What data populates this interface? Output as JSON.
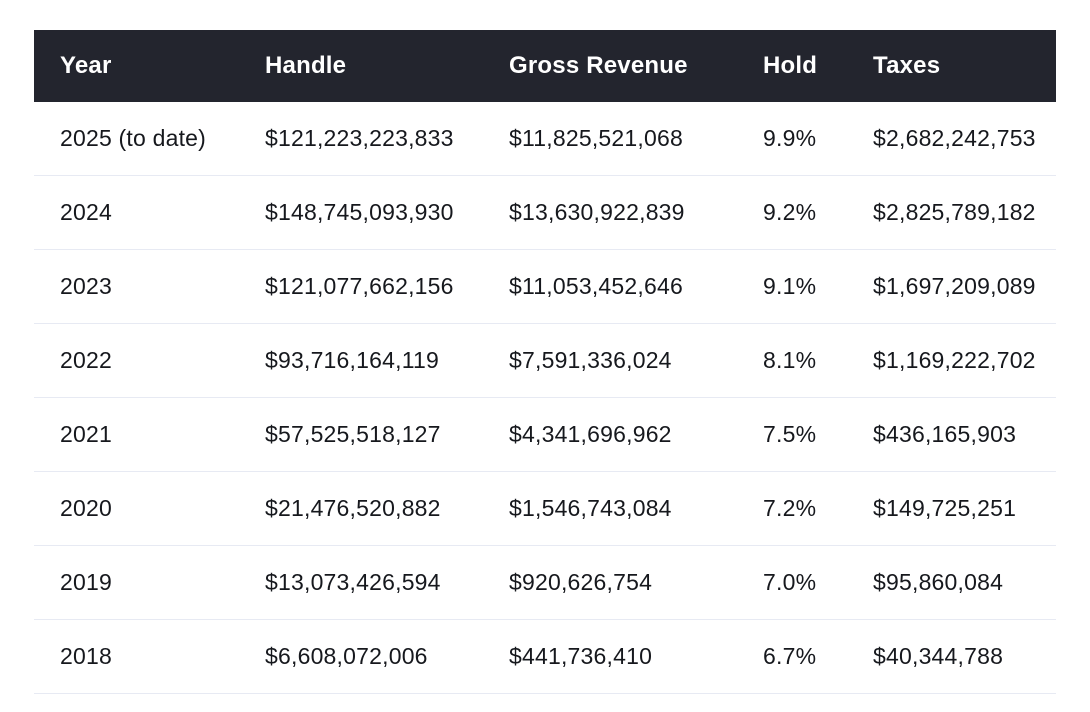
{
  "colors": {
    "header_bg": "#23252e",
    "header_text": "#ffffff",
    "body_text": "#16181d",
    "row_border": "#e7eaf3"
  },
  "table": {
    "columns": [
      "Year",
      "Handle",
      "Gross Revenue",
      "Hold",
      "Taxes"
    ],
    "rows": [
      {
        "year": "2025 (to date)",
        "handle": "$121,223,223,833",
        "gross_revenue": "$11,825,521,068",
        "hold": "9.9%",
        "taxes": "$2,682,242,753"
      },
      {
        "year": "2024",
        "handle": "$148,745,093,930",
        "gross_revenue": "$13,630,922,839",
        "hold": "9.2%",
        "taxes": "$2,825,789,182"
      },
      {
        "year": "2023",
        "handle": "$121,077,662,156",
        "gross_revenue": "$11,053,452,646",
        "hold": "9.1%",
        "taxes": "$1,697,209,089"
      },
      {
        "year": "2022",
        "handle": "$93,716,164,119",
        "gross_revenue": "$7,591,336,024",
        "hold": "8.1%",
        "taxes": "$1,169,222,702"
      },
      {
        "year": "2021",
        "handle": "$57,525,518,127",
        "gross_revenue": "$4,341,696,962",
        "hold": "7.5%",
        "taxes": "$436,165,903"
      },
      {
        "year": "2020",
        "handle": "$21,476,520,882",
        "gross_revenue": "$1,546,743,084",
        "hold": "7.2%",
        "taxes": "$149,725,251"
      },
      {
        "year": "2019",
        "handle": "$13,073,426,594",
        "gross_revenue": "$920,626,754",
        "hold": "7.0%",
        "taxes": "$95,860,084"
      },
      {
        "year": "2018",
        "handle": "$6,608,072,006",
        "gross_revenue": "$441,736,410",
        "hold": "6.7%",
        "taxes": "$40,344,788"
      }
    ]
  },
  "chart_data": {
    "type": "table",
    "title": "",
    "columns": [
      "Year",
      "Handle",
      "Gross Revenue",
      "Hold",
      "Taxes"
    ],
    "rows": [
      [
        "2025 (to date)",
        "$121,223,223,833",
        "$11,825,521,068",
        "9.9%",
        "$2,682,242,753"
      ],
      [
        "2024",
        "$148,745,093,930",
        "$13,630,922,839",
        "9.2%",
        "$2,825,789,182"
      ],
      [
        "2023",
        "$121,077,662,156",
        "$11,053,452,646",
        "9.1%",
        "$1,697,209,089"
      ],
      [
        "2022",
        "$93,716,164,119",
        "$7,591,336,024",
        "8.1%",
        "$1,169,222,702"
      ],
      [
        "2021",
        "$57,525,518,127",
        "$4,341,696,962",
        "7.5%",
        "$436,165,903"
      ],
      [
        "2020",
        "$21,476,520,882",
        "$1,546,743,084",
        "7.2%",
        "$149,725,251"
      ],
      [
        "2019",
        "$13,073,426,594",
        "$920,626,754",
        "7.0%",
        "$95,860,084"
      ],
      [
        "2018",
        "$6,608,072,006",
        "$441,736,410",
        "6.7%",
        "$40,344,788"
      ]
    ],
    "series_numeric": {
      "years": [
        2025,
        2024,
        2023,
        2022,
        2021,
        2020,
        2019,
        2018
      ],
      "handle": [
        121223223833,
        148745093930,
        121077662156,
        93716164119,
        57525518127,
        21476520882,
        13073426594,
        6608072006
      ],
      "gross_revenue": [
        11825521068,
        13630922839,
        11053452646,
        7591336024,
        4341696962,
        1546743084,
        920626754,
        441736410
      ],
      "hold_pct": [
        9.9,
        9.2,
        9.1,
        8.1,
        7.5,
        7.2,
        7.0,
        6.7
      ],
      "taxes": [
        2682242753,
        2825789182,
        1697209089,
        1169222702,
        436165903,
        149725251,
        95860084,
        40344788
      ]
    }
  }
}
